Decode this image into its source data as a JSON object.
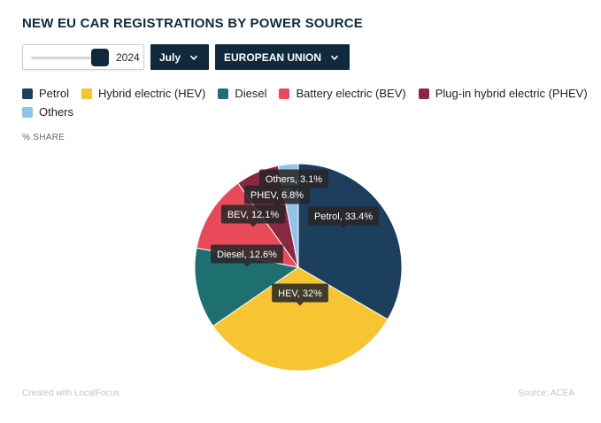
{
  "title": "NEW EU CAR REGISTRATIONS BY POWER SOURCE",
  "controls": {
    "year_value": "2024",
    "month_label": "July",
    "region_label": "EUROPEAN UNION"
  },
  "unit_label": "% SHARE",
  "footer": {
    "credit": "Created with LocalFocus",
    "source": "Source:  ACEA"
  },
  "legend": [
    {
      "label": "Petrol",
      "color": "#1c3f5e"
    },
    {
      "label": "Hybrid electric (HEV)",
      "color": "#f6c531"
    },
    {
      "label": "Diesel",
      "color": "#1e7070"
    },
    {
      "label": "Battery electric (BEV)",
      "color": "#e84a5a"
    },
    {
      "label": "Plug-in hybrid electric (PHEV)",
      "color": "#8b2743"
    },
    {
      "label": "Others",
      "color": "#8fc3e8"
    }
  ],
  "chart_data": {
    "type": "pie",
    "title": "NEW EU CAR REGISTRATIONS BY POWER SOURCE",
    "unit": "% SHARE",
    "slices": [
      {
        "name": "Petrol",
        "value": 33.4,
        "label": "Petrol, 33.4%",
        "color": "#1c3f5e"
      },
      {
        "name": "Hybrid electric (HEV)",
        "value": 32,
        "label": "HEV, 32%",
        "color": "#f6c531"
      },
      {
        "name": "Diesel",
        "value": 12.6,
        "label": "Diesel, 12.6%",
        "color": "#1e7070"
      },
      {
        "name": "Battery electric (BEV)",
        "value": 12.1,
        "label": "BEV, 12.1%",
        "color": "#e84a5a"
      },
      {
        "name": "Plug-in hybrid electric (PHEV)",
        "value": 6.8,
        "label": "PHEV, 6.8%",
        "color": "#8b2743"
      },
      {
        "name": "Others",
        "value": 3.1,
        "label": "Others, 3.1%",
        "color": "#8fc3e8"
      }
    ]
  }
}
